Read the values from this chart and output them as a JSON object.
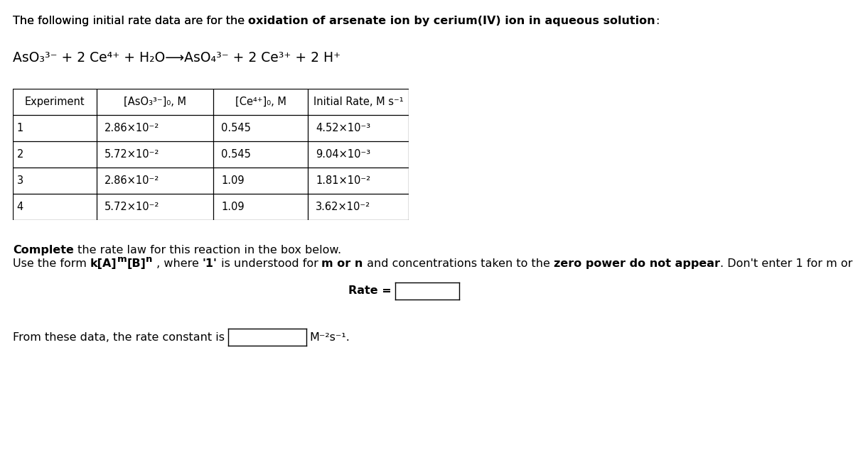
{
  "title_normal": "The following initial rate data are for the ",
  "title_bold": "oxidation of arsenate ion by cerium(IV) ion in aqueous solution",
  "title_end": ":",
  "table_headers": [
    "Experiment",
    "[AsO₃³⁻]₀, M",
    "[Ce⁴⁺]₀, M",
    "Initial Rate, M s⁻¹"
  ],
  "table_data": [
    [
      "1",
      "2.86×10⁻²",
      "0.545",
      "4.52×10⁻³"
    ],
    [
      "2",
      "5.72×10⁻²",
      "0.545",
      "9.04×10⁻³"
    ],
    [
      "3",
      "2.86×10⁻²",
      "1.09",
      "1.81×10⁻²"
    ],
    [
      "4",
      "5.72×10⁻²",
      "1.09",
      "3.62×10⁻²"
    ]
  ],
  "bg_color": "#ffffff",
  "text_color": "#000000",
  "font_size": 11.5
}
